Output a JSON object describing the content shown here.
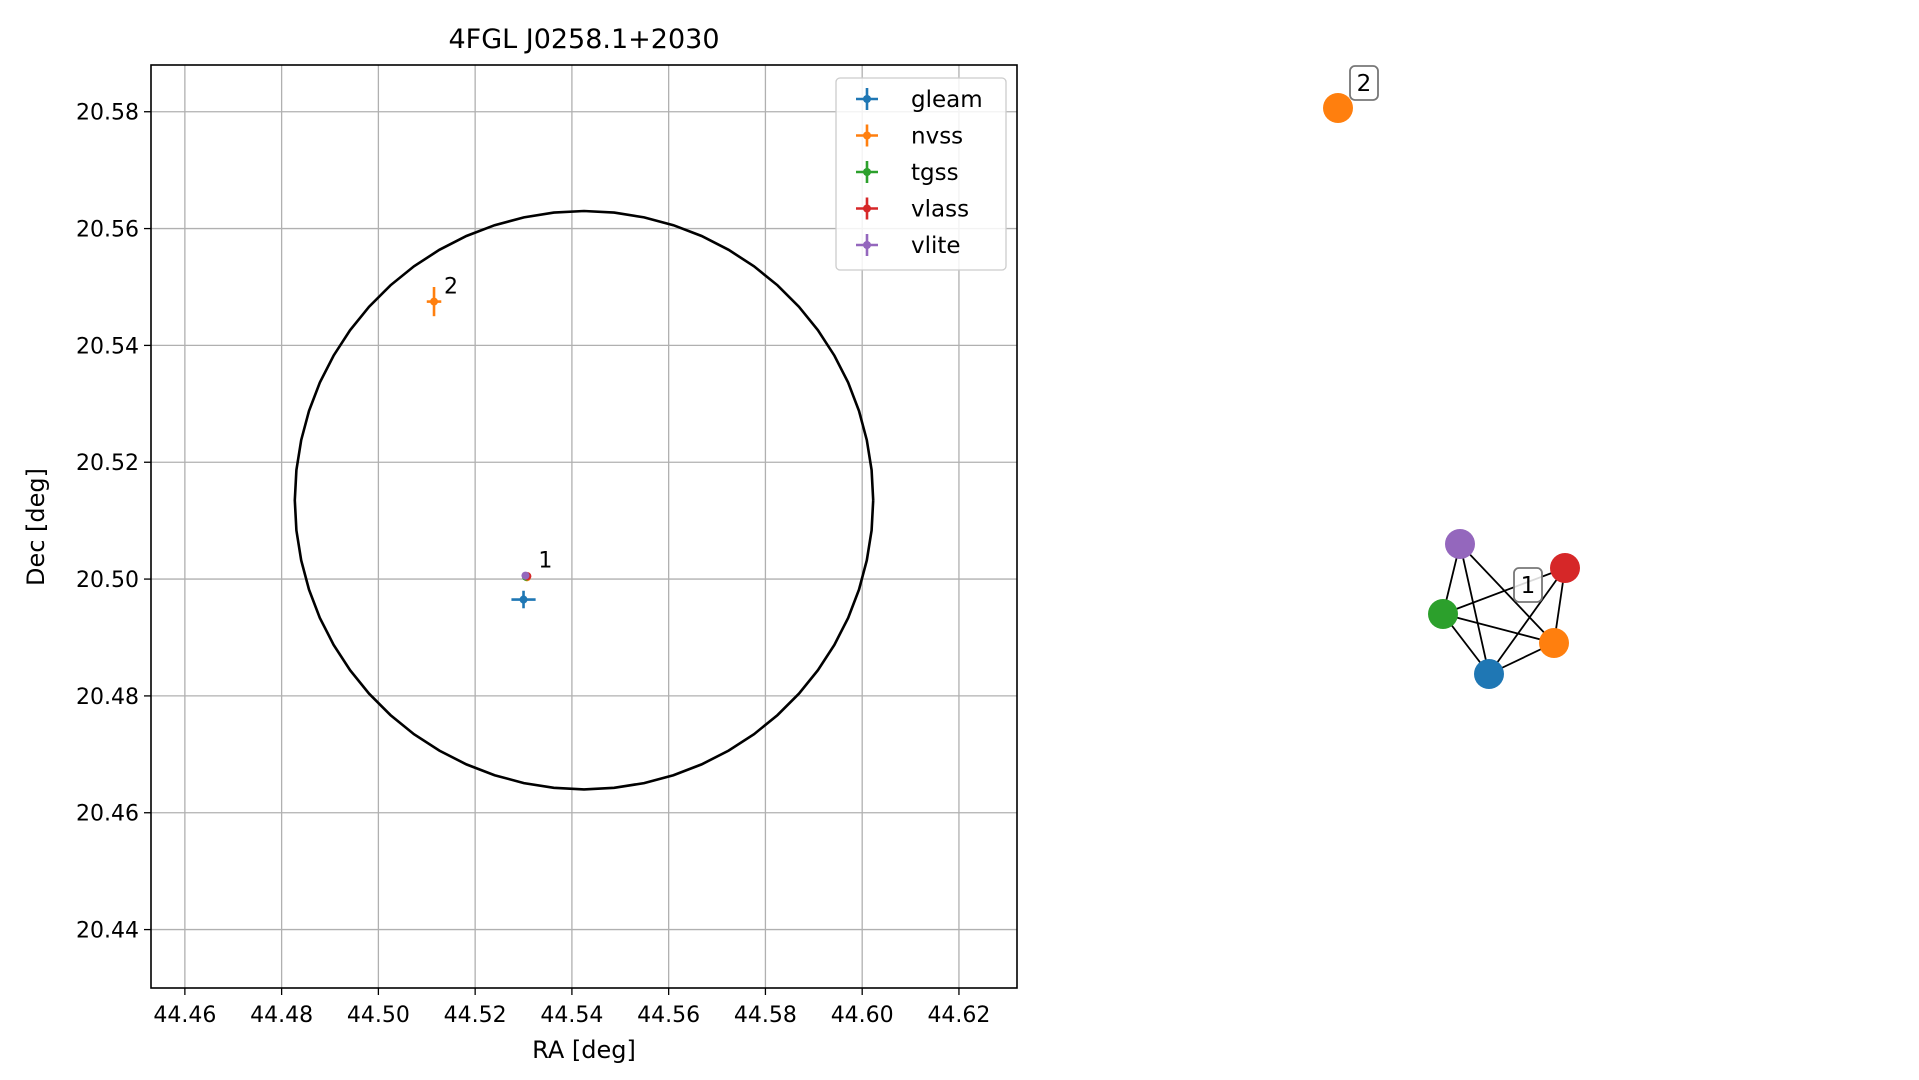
{
  "chart_data": [
    {
      "type": "scatter",
      "title": "4FGL J0258.1+2030",
      "xlabel": "RA [deg]",
      "ylabel": "Dec [deg]",
      "xlim": [
        44.453,
        44.632
      ],
      "ylim": [
        20.43,
        20.588
      ],
      "xticks": [
        "44.46",
        "44.48",
        "44.50",
        "44.52",
        "44.54",
        "44.56",
        "44.58",
        "44.60",
        "44.62"
      ],
      "yticks": [
        "20.44",
        "20.46",
        "20.48",
        "20.50",
        "20.52",
        "20.54",
        "20.56",
        "20.58"
      ],
      "grid": true,
      "legend_position": "top-right",
      "series": [
        {
          "name": "gleam",
          "color": "#1f77b4",
          "points": [
            {
              "x": 44.53,
              "y": 20.4965,
              "xerr": 0.0025,
              "yerr": 0.0015
            }
          ]
        },
        {
          "name": "nvss",
          "color": "#ff7f0e",
          "points": [
            {
              "x": 44.5115,
              "y": 20.5475,
              "xerr": 0.0015,
              "yerr": 0.0025
            },
            {
              "x": 44.5307,
              "y": 20.5003,
              "xerr": 0.0002,
              "yerr": 0.0002
            }
          ]
        },
        {
          "name": "tgss",
          "color": "#2ca02c",
          "points": [
            {
              "x": 44.5305,
              "y": 20.5004,
              "xerr": 0.0002,
              "yerr": 0.0002
            }
          ]
        },
        {
          "name": "vlass",
          "color": "#d62728",
          "points": [
            {
              "x": 44.5308,
              "y": 20.5005,
              "xerr": 0.0001,
              "yerr": 0.0001
            }
          ]
        },
        {
          "name": "vlite",
          "color": "#9467bd",
          "points": [
            {
              "x": 44.5304,
              "y": 20.5006,
              "xerr": 0.0002,
              "yerr": 0.0002
            }
          ]
        }
      ],
      "annotations": [
        {
          "text": "1",
          "x": 44.531,
          "y": 20.5006
        },
        {
          "text": "2",
          "x": 44.5115,
          "y": 20.5475
        }
      ],
      "circle": {
        "center_x": 44.5425,
        "center_y": 20.5135,
        "radius_dec": 0.0495
      }
    },
    {
      "type": "network",
      "groups": [
        {
          "label": "1",
          "nodes": [
            {
              "id": "vlite",
              "color": "#9467bd"
            },
            {
              "id": "vlass",
              "color": "#d62728"
            },
            {
              "id": "tgss",
              "color": "#2ca02c"
            },
            {
              "id": "nvss",
              "color": "#ff7f0e"
            },
            {
              "id": "gleam",
              "color": "#1f77b4"
            }
          ],
          "edges": [
            [
              "vlite",
              "tgss"
            ],
            [
              "vlite",
              "gleam"
            ],
            [
              "vlite",
              "nvss"
            ],
            [
              "tgss",
              "vlass"
            ],
            [
              "tgss",
              "nvss"
            ],
            [
              "tgss",
              "gleam"
            ],
            [
              "vlass",
              "nvss"
            ],
            [
              "vlass",
              "gleam"
            ],
            [
              "nvss",
              "gleam"
            ]
          ]
        },
        {
          "label": "2",
          "nodes": [
            {
              "id": "nvss",
              "color": "#ff7f0e"
            }
          ],
          "edges": []
        }
      ]
    }
  ]
}
